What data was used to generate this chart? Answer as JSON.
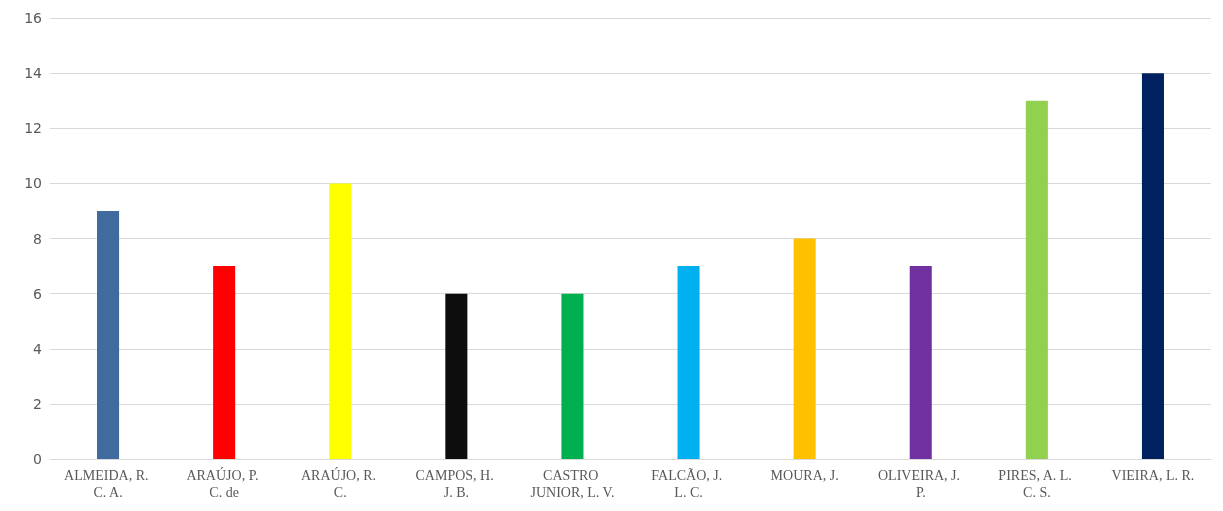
{
  "chart_data": {
    "type": "bar",
    "categories": [
      "ALMEIDA, R. C. A.",
      "ARAÚJO, P. C. de",
      "ARAÚJO, R. C.",
      "CAMPOS, H. J. B.",
      "CASTRO JUNIOR, L. V.",
      "FALCÃO, J. L. C.",
      "MOURA, J.",
      "OLIVEIRA, J. P.",
      "PIRES, A. L. C. S.",
      "VIEIRA, L. R."
    ],
    "values": [
      9,
      7,
      10,
      6,
      6,
      7,
      8,
      7,
      13,
      14
    ],
    "colors": [
      "#3f6b9e",
      "#ff0000",
      "#ffff00",
      "#0d0d0d",
      "#00b050",
      "#00b0f0",
      "#ffc000",
      "#7030a0",
      "#92d050",
      "#002060"
    ],
    "ylim": [
      0,
      16
    ],
    "yticks": [
      0,
      2,
      4,
      6,
      8,
      10,
      12,
      14,
      16
    ],
    "grid": "y"
  }
}
